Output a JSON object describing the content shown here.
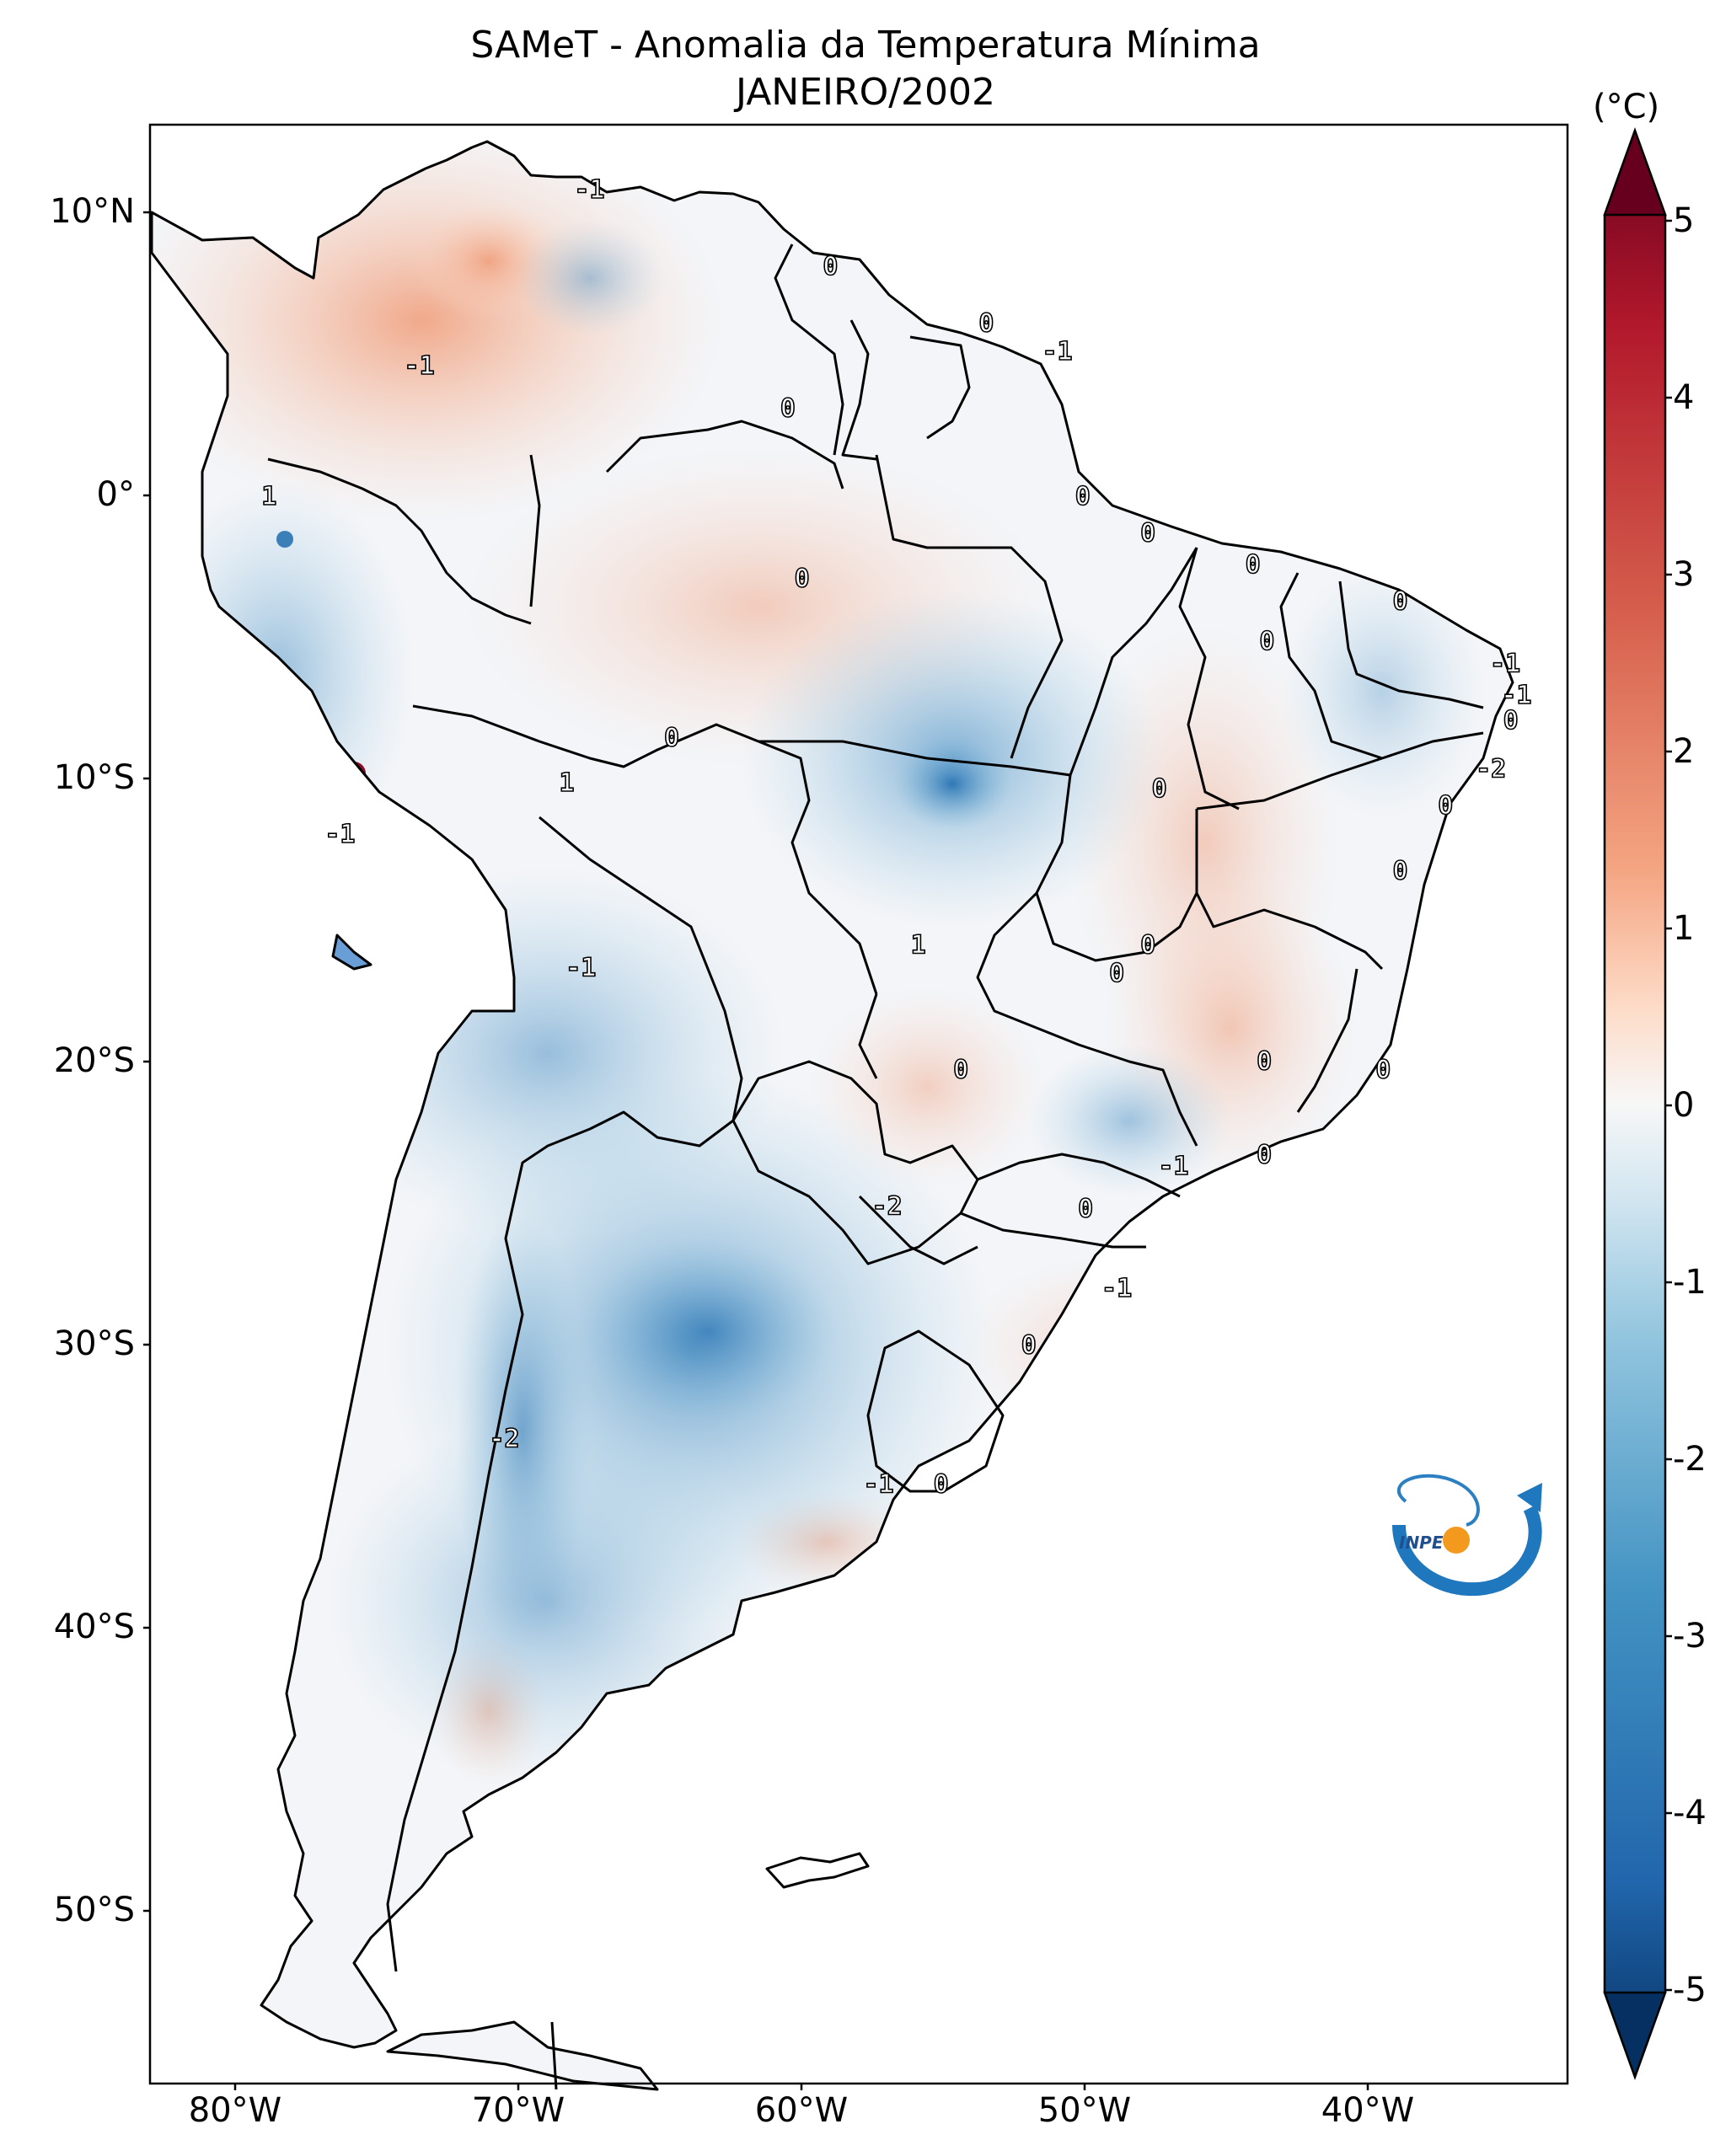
{
  "title": {
    "line1": "SAMeT - Anomalia da Temperatura Mínima",
    "line2": "JANEIRO/2002"
  },
  "axes": {
    "lat_labels": [
      "10°N",
      "0°",
      "10°S",
      "20°S",
      "30°S",
      "40°S",
      "50°S"
    ],
    "lon_labels": [
      "80°W",
      "70°W",
      "60°W",
      "50°W",
      "40°W"
    ]
  },
  "colorbar": {
    "unit": "(°C)",
    "ticks": [
      "5",
      "4",
      "3",
      "2",
      "1",
      "0",
      "-1",
      "-2",
      "-3",
      "-4",
      "-5"
    ],
    "range": [
      -5,
      5
    ],
    "colors": {
      "min": "#053061",
      "low": "#2166ac",
      "midlow": "#92c5de",
      "mid": "#f7f7f7",
      "midhigh": "#f4a582",
      "high": "#b2182b",
      "max": "#67001f"
    }
  },
  "map": {
    "region": "South America",
    "lon_range": [
      -83,
      -33
    ],
    "lat_range": [
      -56,
      13
    ],
    "contour_labels": [
      {
        "text": "-1",
        "lon": -67.5,
        "lat": 10.7
      },
      {
        "text": "-1",
        "lon": -73.5,
        "lat": 4.5
      },
      {
        "text": "0",
        "lon": -59,
        "lat": 8
      },
      {
        "text": "0",
        "lon": -53.5,
        "lat": 6
      },
      {
        "text": "-1",
        "lon": -51,
        "lat": 5
      },
      {
        "text": "0",
        "lon": -60.5,
        "lat": 3
      },
      {
        "text": "1",
        "lon": -78.8,
        "lat": -0.1
      },
      {
        "text": "0",
        "lon": -50.1,
        "lat": -0.1
      },
      {
        "text": "0",
        "lon": -60,
        "lat": -3
      },
      {
        "text": "0",
        "lon": -47.8,
        "lat": -1.4
      },
      {
        "text": "0",
        "lon": -44.1,
        "lat": -2.5
      },
      {
        "text": "0",
        "lon": -38.9,
        "lat": -3.8
      },
      {
        "text": "0",
        "lon": -43.6,
        "lat": -5.2
      },
      {
        "text": "-1",
        "lon": -35.2,
        "lat": -6
      },
      {
        "text": "-1",
        "lon": -34.8,
        "lat": -7.1
      },
      {
        "text": "0",
        "lon": -35,
        "lat": -8
      },
      {
        "text": "-2",
        "lon": -35.7,
        "lat": -9.7
      },
      {
        "text": "0",
        "lon": -37.3,
        "lat": -11
      },
      {
        "text": "0",
        "lon": -47.4,
        "lat": -10.4
      },
      {
        "text": "1",
        "lon": -68.3,
        "lat": -10.2
      },
      {
        "text": "0",
        "lon": -64.6,
        "lat": -8.6
      },
      {
        "text": "-1",
        "lon": -76.3,
        "lat": -12
      },
      {
        "text": "0",
        "lon": -38.9,
        "lat": -13.3
      },
      {
        "text": "1",
        "lon": -55.9,
        "lat": -15.9
      },
      {
        "text": "0",
        "lon": -47.8,
        "lat": -15.9
      },
      {
        "text": "0",
        "lon": -48.9,
        "lat": -16.9
      },
      {
        "text": "-1",
        "lon": -67.8,
        "lat": -16.7
      },
      {
        "text": "0",
        "lon": -54.4,
        "lat": -20.3
      },
      {
        "text": "0",
        "lon": -43.7,
        "lat": -20
      },
      {
        "text": "0",
        "lon": -39.5,
        "lat": -20.3
      },
      {
        "text": "0",
        "lon": -43.7,
        "lat": -23.3
      },
      {
        "text": "-1",
        "lon": -46.9,
        "lat": -23.7
      },
      {
        "text": "-2",
        "lon": -57,
        "lat": -25.1
      },
      {
        "text": "0",
        "lon": -50,
        "lat": -25.2
      },
      {
        "text": "-1",
        "lon": -48.9,
        "lat": -28
      },
      {
        "text": "0",
        "lon": -52,
        "lat": -30
      },
      {
        "text": "-2",
        "lon": -70.5,
        "lat": -33.3
      },
      {
        "text": "-1",
        "lon": -57.3,
        "lat": -34.9
      },
      {
        "text": "0",
        "lon": -55.1,
        "lat": -34.9
      }
    ]
  },
  "logo": {
    "text": "INPE"
  }
}
